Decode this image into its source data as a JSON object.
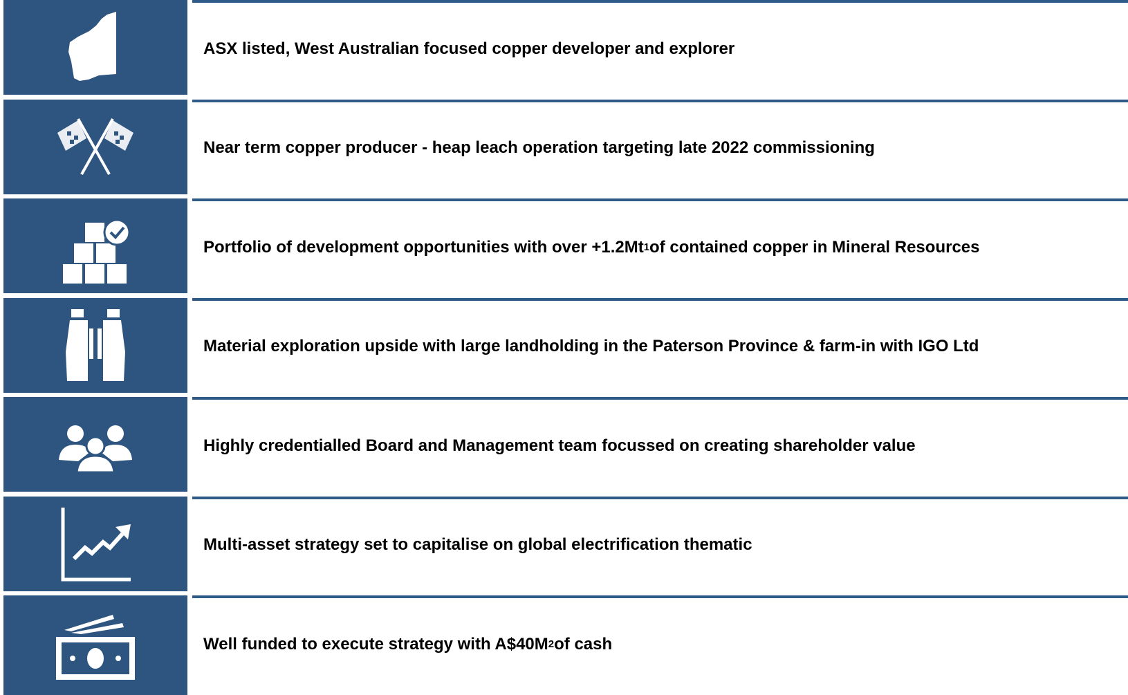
{
  "items": [
    {
      "text": "ASX listed, West Australian focused copper developer and explorer"
    },
    {
      "text": "Near term copper producer - heap leach operation targeting late 2022 commissioning"
    },
    {
      "text": "Portfolio of development opportunities with over +1.2Mt",
      "sup": "1",
      "text_after": " of contained copper in Mineral Resources"
    },
    {
      "text": "Material exploration upside with large landholding in the Paterson Province & farm-in with IGO Ltd"
    },
    {
      "text": "Highly credentialled Board and Management team focussed on creating shareholder value"
    },
    {
      "text": "Multi-asset strategy set to capitalise on global electrification thematic"
    },
    {
      "text": "Well funded to execute strategy with A$40M",
      "sup": "2",
      "text_after": " of cash"
    }
  ]
}
